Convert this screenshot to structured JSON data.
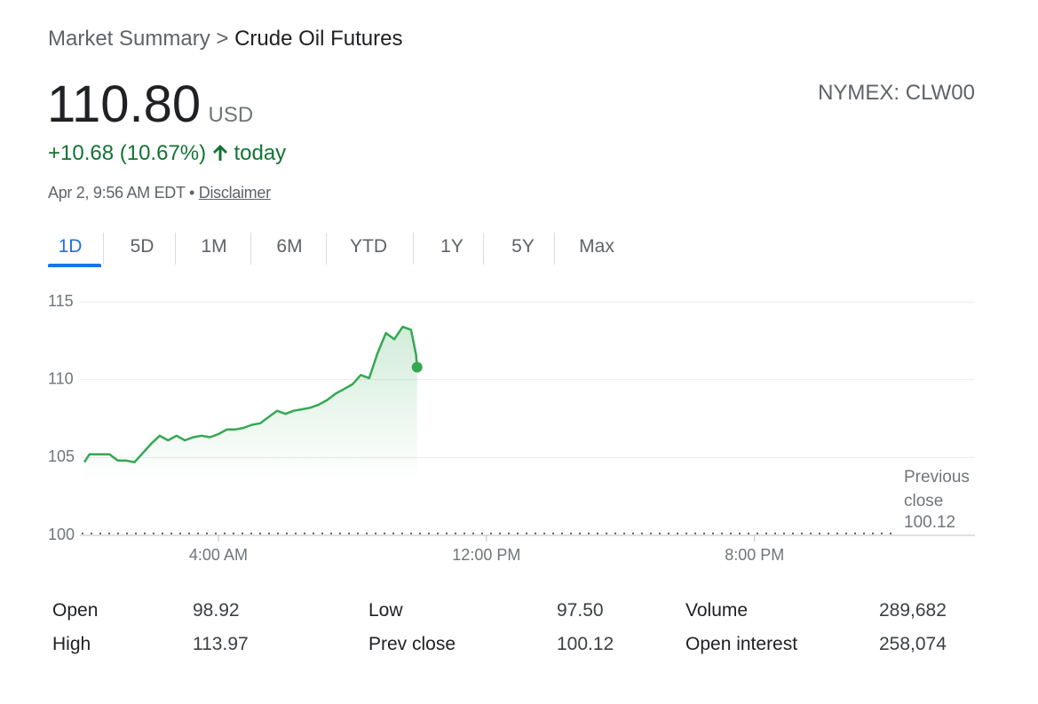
{
  "breadcrumb": {
    "parent": "Market Summary",
    "separator": ">",
    "current": "Crude Oil Futures"
  },
  "quote": {
    "price": "110.80",
    "currency": "USD",
    "exchange": "NYMEX: CLW00",
    "change": "+10.68 (10.67%)",
    "period": "today",
    "timestamp": "Apr 2, 9:56 AM EDT",
    "bullet": "•",
    "disclaimer": "Disclaimer"
  },
  "tabs": {
    "items": [
      "1D",
      "5D",
      "1M",
      "6M",
      "YTD",
      "1Y",
      "5Y",
      "Max"
    ],
    "selected": "1D"
  },
  "chart_data": {
    "type": "line",
    "x": [
      0,
      0.15,
      0.5,
      0.75,
      1,
      1.25,
      1.5,
      1.75,
      2,
      2.25,
      2.5,
      2.75,
      3,
      3.25,
      3.5,
      3.75,
      4,
      4.25,
      4.5,
      4.75,
      5,
      5.25,
      5.5,
      5.75,
      6,
      6.25,
      6.5,
      6.75,
      7,
      7.25,
      7.5,
      7.75,
      8,
      8.25,
      8.5,
      8.75,
      9,
      9.25,
      9.5,
      9.75,
      9.9,
      9.93
    ],
    "series": [
      {
        "color": "#34a853",
        "values": [
          104.7,
          105.2,
          105.2,
          105.2,
          104.8,
          104.8,
          104.7,
          105.3,
          105.9,
          106.4,
          106.1,
          106.4,
          106.1,
          106.3,
          106.4,
          106.3,
          106.5,
          106.8,
          106.8,
          106.9,
          107.1,
          107.2,
          107.6,
          108.0,
          107.8,
          108.0,
          108.1,
          108.2,
          108.4,
          108.7,
          109.1,
          109.4,
          109.7,
          110.3,
          110.1,
          111.7,
          113.0,
          112.6,
          113.4,
          113.2,
          111.6,
          110.8
        ]
      }
    ],
    "xlim": [
      0,
      26.5
    ],
    "xticks": [
      {
        "value": 4,
        "label": "4:00 AM"
      },
      {
        "value": 12,
        "label": "12:00 PM"
      },
      {
        "value": 20,
        "label": "8:00 PM"
      }
    ],
    "ylim": [
      100,
      115
    ],
    "yticks": [
      115,
      110,
      105,
      100
    ],
    "grid": true,
    "previous_close_label": "Previous close",
    "previous_close": 100.12
  },
  "stats": {
    "rows": [
      [
        [
          "Open",
          "98.92"
        ],
        [
          "Low",
          "97.50"
        ],
        [
          "Volume",
          "289,682"
        ]
      ],
      [
        [
          "High",
          "113.97"
        ],
        [
          "Prev close",
          "100.12"
        ],
        [
          "Open interest",
          "258,074"
        ]
      ]
    ]
  }
}
